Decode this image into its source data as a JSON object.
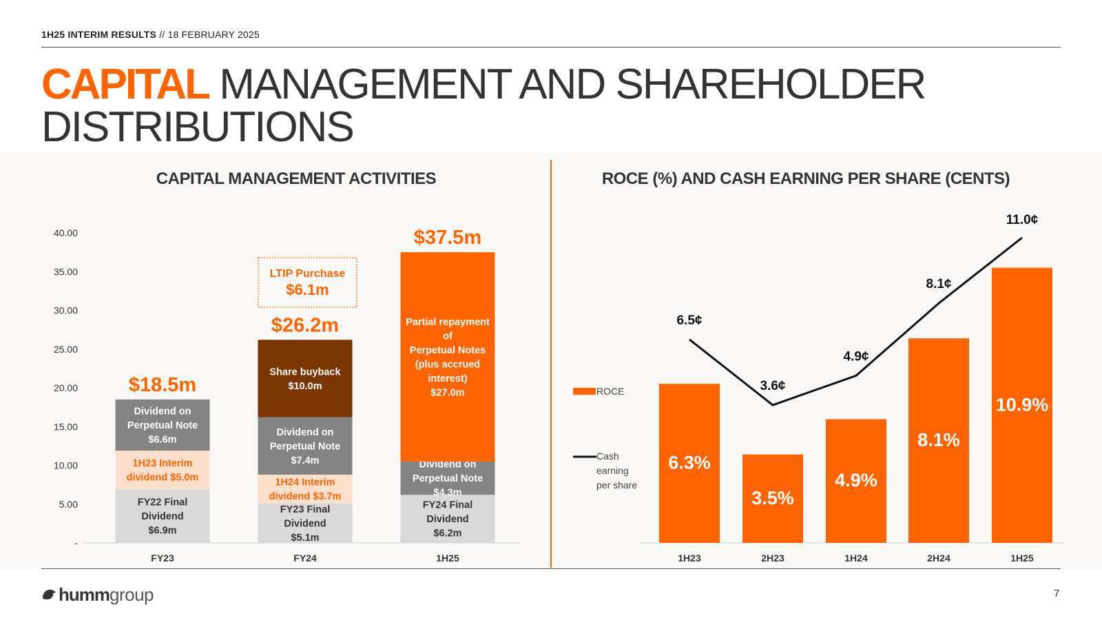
{
  "header": {
    "bold": "1H25 INTERIM RESULTS",
    "rest": " // 18 FEBRUARY 2025"
  },
  "title": {
    "accent": "CAPITAL",
    "rest": " MANAGEMENT AND SHAREHOLDER DISTRIBUTIONS"
  },
  "colors": {
    "accent": "#ff6400",
    "dark_brown": "#7a3500",
    "grey": "#838383",
    "light_grey": "#d9d9d9",
    "peach": "#fde0cc"
  },
  "chart_data": [
    {
      "type": "bar",
      "stacked": true,
      "title": "CAPITAL MANAGEMENT ACTIVITIES",
      "categories": [
        "FY23",
        "FY24",
        "1H25"
      ],
      "ylim": [
        0,
        40
      ],
      "yticks": [
        {
          "v": 0,
          "label": "-"
        },
        {
          "v": 5,
          "label": "5.00"
        },
        {
          "v": 10,
          "label": "10.00"
        },
        {
          "v": 15,
          "label": "15.00"
        },
        {
          "v": 20,
          "label": "20.00"
        },
        {
          "v": 25,
          "label": "25.00"
        },
        {
          "v": 30,
          "label": "30.00"
        },
        {
          "v": 35,
          "label": "35.00"
        },
        {
          "v": 40,
          "label": "40.00"
        }
      ],
      "totals": [
        "$18.5m",
        "$26.2m",
        "$37.5m"
      ],
      "segments": [
        [
          {
            "value": 6.9,
            "lines": [
              "FY22 Final",
              "Dividend",
              "$6.9m"
            ],
            "color": "#d9d9d9",
            "text_color": "#333333"
          },
          {
            "value": 5.0,
            "lines": [
              "1H23 Interim",
              "dividend $5.0m"
            ],
            "color": "#fde0cc",
            "text_color": "#ff6400"
          },
          {
            "value": 6.6,
            "lines": [
              "Dividend on",
              "Perpetual Note",
              "$6.6m"
            ],
            "color": "#838383",
            "text_color": "#ffffff"
          }
        ],
        [
          {
            "value": 5.1,
            "lines": [
              "FY23 Final",
              "Dividend",
              "$5.1m"
            ],
            "color": "#d9d9d9",
            "text_color": "#333333"
          },
          {
            "value": 3.7,
            "lines": [
              "1H24 Interim",
              "dividend $3.7m"
            ],
            "color": "#fde0cc",
            "text_color": "#ff6400"
          },
          {
            "value": 7.4,
            "lines": [
              "Dividend on",
              "Perpetual Note",
              "$7.4m"
            ],
            "color": "#838383",
            "text_color": "#ffffff"
          },
          {
            "value": 10.0,
            "lines": [
              "Share buyback",
              "$10.0m"
            ],
            "color": "#7a3500",
            "text_color": "#ffffff"
          }
        ],
        [
          {
            "value": 6.2,
            "lines": [
              "FY24 Final",
              "Dividend",
              "$6.2m"
            ],
            "color": "#d9d9d9",
            "text_color": "#333333"
          },
          {
            "value": 4.3,
            "lines": [
              "Dividend on",
              "Perpetual Note",
              "$4.3m"
            ],
            "color": "#838383",
            "text_color": "#ffffff"
          },
          {
            "value": 27.0,
            "lines": [
              "Partial repayment",
              "of",
              "Perpetual Notes",
              "(plus accrued",
              "interest)",
              "$27.0m"
            ],
            "color": "#ff6400",
            "text_color": "#ffffff"
          }
        ]
      ],
      "callout": {
        "title": "LTIP Purchase",
        "value": "$6.1m"
      }
    },
    {
      "type": "bar+line",
      "title": "ROCE (%) AND CASH EARNING PER SHARE (CENTS)",
      "categories": [
        "1H23",
        "2H23",
        "1H24",
        "2H24",
        "1H25"
      ],
      "series": [
        {
          "name": "ROCE",
          "type": "bar",
          "values": [
            6.3,
            3.5,
            4.9,
            8.1,
            10.9
          ],
          "labels": [
            "6.3%",
            "3.5%",
            "4.9%",
            "8.1%",
            "10.9%"
          ],
          "color": "#ff6400"
        },
        {
          "name": "Cash earning per share",
          "type": "line",
          "values": [
            6.5,
            3.6,
            4.9,
            8.1,
            11.0
          ],
          "labels": [
            "6.5¢",
            "3.6¢",
            "4.9¢",
            "8.1¢",
            "11.0¢"
          ],
          "color": "#111111"
        }
      ],
      "ylim": [
        0,
        12.5
      ],
      "legend": [
        {
          "key": "roce",
          "text": "ROCE"
        },
        {
          "key": "eps",
          "text": "Cash earning per share"
        }
      ]
    }
  ],
  "footer": {
    "logo_brand": "humm",
    "logo_suffix": "group",
    "page_number": "7"
  }
}
